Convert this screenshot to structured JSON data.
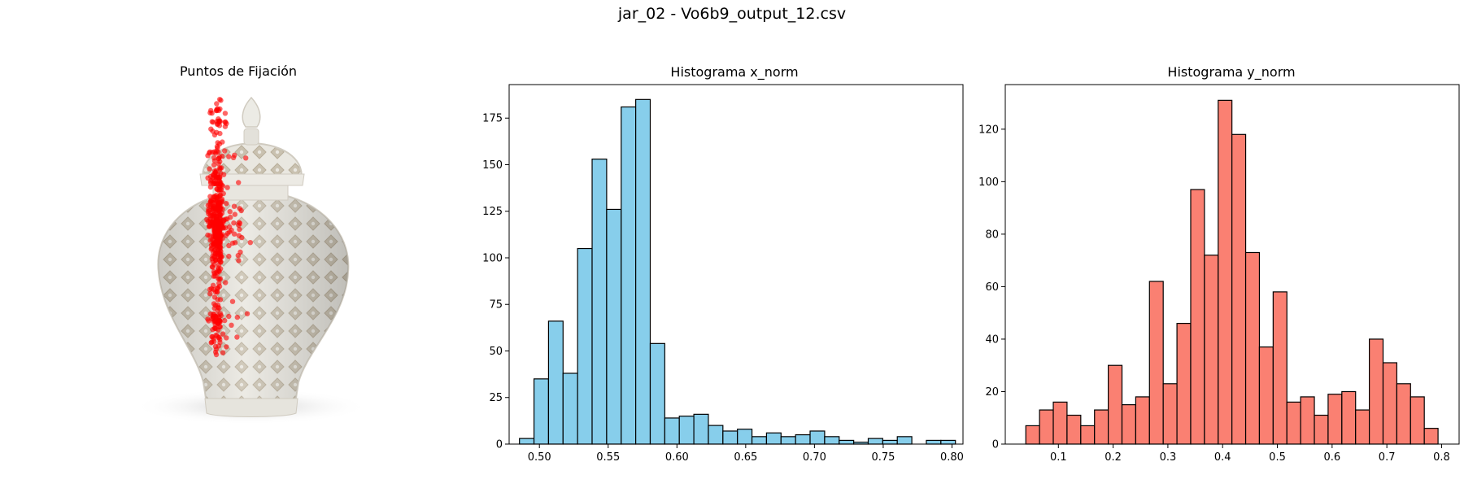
{
  "suptitle": "jar_02 - Vo6b9_output_12.csv",
  "chart_data": [
    {
      "type": "scatter",
      "title": "Puntos de Fijación",
      "background": "image of a white reticulated porcelain ginger jar with lid",
      "color": "#ff0000",
      "alpha": 0.6,
      "note_points": "fixation points form a vertical band; x_norm and y_norm values from the histograms"
    },
    {
      "type": "bar",
      "title": "Histograma x_norm",
      "color": "#87ceeb",
      "edgecolor": "#000000",
      "xlim": [
        0.478,
        0.808
      ],
      "ylim": [
        0,
        193
      ],
      "xticks": [
        "0.50",
        "0.55",
        "0.60",
        "0.65",
        "0.70",
        "0.75",
        "0.80"
      ],
      "yticks": [
        "0",
        "25",
        "50",
        "75",
        "100",
        "125",
        "150",
        "175"
      ],
      "bin_start": 0.4855,
      "bin_end": 0.8025,
      "counts": [
        3,
        35,
        66,
        38,
        105,
        153,
        126,
        181,
        185,
        54,
        14,
        15,
        16,
        10,
        7,
        8,
        4,
        6,
        4,
        5,
        7,
        4,
        2,
        1,
        3,
        2,
        4,
        0,
        2,
        2
      ]
    },
    {
      "type": "bar",
      "title": "Histograma y_norm",
      "color": "#fa8072",
      "edgecolor": "#000000",
      "xlim": [
        0.003,
        0.832
      ],
      "ylim": [
        0,
        137
      ],
      "xticks": [
        "0.1",
        "0.2",
        "0.3",
        "0.4",
        "0.5",
        "0.6",
        "0.7",
        "0.8"
      ],
      "yticks": [
        "0",
        "20",
        "40",
        "60",
        "80",
        "100",
        "120"
      ],
      "bin_start": 0.0405,
      "bin_end": 0.7935,
      "counts": [
        7,
        13,
        16,
        11,
        7,
        13,
        30,
        15,
        18,
        62,
        23,
        46,
        97,
        72,
        131,
        118,
        73,
        37,
        58,
        16,
        18,
        11,
        19,
        20,
        13,
        40,
        31,
        23,
        18,
        6
      ]
    }
  ]
}
